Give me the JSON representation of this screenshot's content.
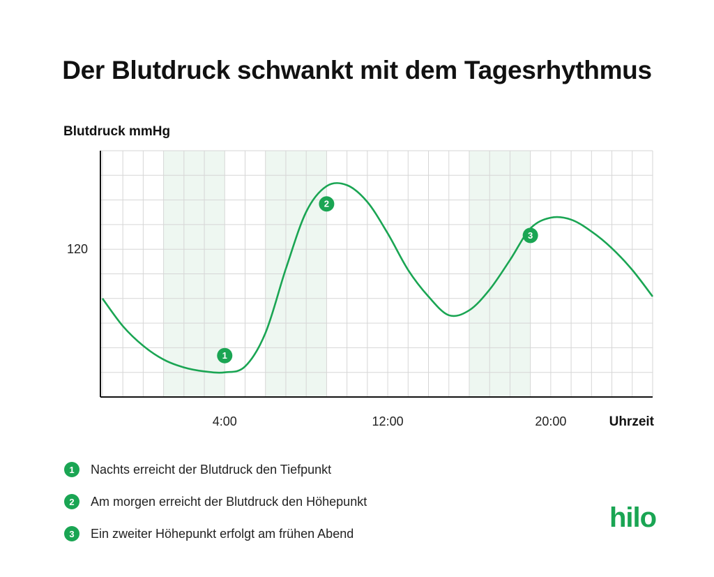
{
  "header": {
    "title": "Der Blutdruck schwankt mit dem Tagesrhythmus"
  },
  "brand": {
    "logo_text": "hilo",
    "accent_color": "#1aa553"
  },
  "chart_data": {
    "type": "line",
    "title": "Der Blutdruck schwankt mit dem Tagesrhythmus",
    "xlabel": "Uhrzeit",
    "ylabel": "Blutdruck mmHg",
    "x_unit": "hours",
    "xlim": [
      -2.1,
      25.0
    ],
    "ylim": [
      105,
      130
    ],
    "x_ticks": [
      {
        "value": 4,
        "label": "4:00"
      },
      {
        "value": 12,
        "label": "12:00"
      },
      {
        "value": 20,
        "label": "20:00"
      }
    ],
    "y_ticks": [
      {
        "value": 120,
        "label": "120"
      }
    ],
    "grid": true,
    "line_color": "#1aa553",
    "series": [
      {
        "x": [
          -2.0,
          -1.0,
          0.0,
          1.0,
          2.0,
          3.0,
          4.0,
          5.0,
          6.0,
          7.0,
          8.0,
          9.0,
          10.0,
          11.0,
          12.0,
          13.0,
          14.0,
          15.0,
          16.0,
          17.0,
          18.0,
          19.0,
          20.0,
          21.0,
          22.0,
          23.0,
          24.0,
          25.0
        ],
        "y": [
          115.0,
          112.2,
          110.2,
          108.8,
          108.0,
          107.6,
          107.5,
          108.1,
          111.5,
          118.0,
          123.8,
          126.4,
          126.5,
          124.8,
          121.6,
          117.9,
          115.2,
          113.3,
          113.8,
          115.9,
          118.9,
          122.1,
          123.2,
          123.0,
          121.8,
          120.1,
          117.9,
          115.2
        ]
      }
    ],
    "highlights": [
      {
        "x_start": 1,
        "x_end": 4,
        "label": "1"
      },
      {
        "x_start": 6,
        "x_end": 9,
        "label": "2"
      },
      {
        "x_start": 16,
        "x_end": 19,
        "label": "3"
      }
    ],
    "markers": [
      {
        "x": 4,
        "y": 109.2,
        "label": "1"
      },
      {
        "x": 9,
        "y": 124.6,
        "label": "2"
      },
      {
        "x": 19,
        "y": 121.4,
        "label": "3"
      }
    ]
  },
  "legend": {
    "items": [
      {
        "num": "1",
        "text": "Nachts erreicht der Blutdruck den Tiefpunkt"
      },
      {
        "num": "2",
        "text": "Am morgen erreicht der Blutdruck den Höhepunkt"
      },
      {
        "num": "3",
        "text": "Ein zweiter Höhepunkt erfolgt am frühen Abend"
      }
    ]
  }
}
